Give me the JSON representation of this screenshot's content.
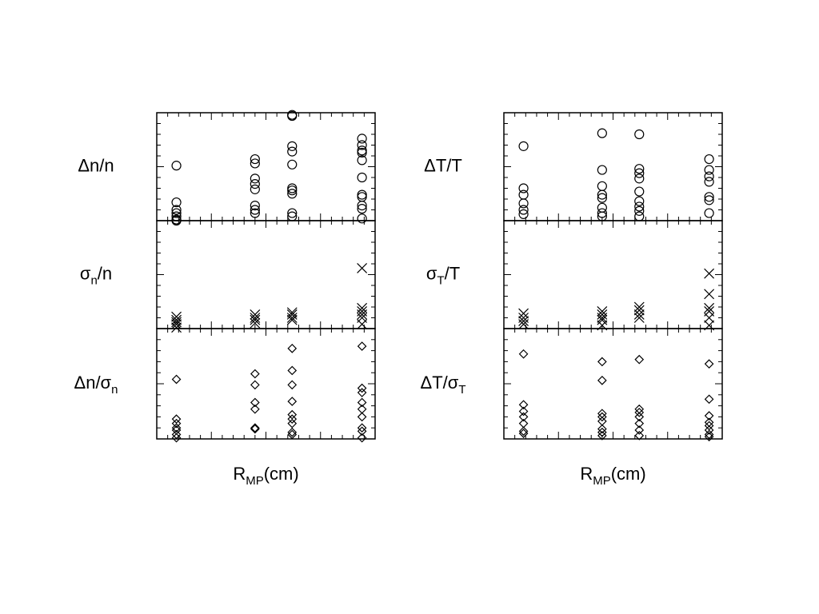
{
  "chart_data": [
    {
      "type": "scatter",
      "marker": "circle",
      "color": "#000000",
      "ylabel": [
        {
          "text": "Δn/n"
        }
      ],
      "xlim": [
        0,
        1
      ],
      "ylim": [
        0,
        1
      ],
      "x": [
        0.09,
        0.09,
        0.09,
        0.09,
        0.09,
        0.09,
        0.09,
        0.45,
        0.45,
        0.45,
        0.45,
        0.45,
        0.45,
        0.45,
        0.45,
        0.62,
        0.62,
        0.62,
        0.62,
        0.62,
        0.62,
        0.62,
        0.62,
        0.62,
        0.62,
        0.94,
        0.94,
        0.94,
        0.94,
        0.94,
        0.94,
        0.94,
        0.94,
        0.94,
        0.94,
        0.94
      ],
      "values": [
        0.51,
        0.17,
        0.1,
        0.07,
        0.04,
        0.01,
        0.0,
        0.57,
        0.53,
        0.39,
        0.34,
        0.29,
        0.14,
        0.1,
        0.07,
        0.98,
        0.97,
        0.69,
        0.64,
        0.52,
        0.3,
        0.28,
        0.25,
        0.07,
        0.04,
        0.76,
        0.7,
        0.65,
        0.63,
        0.56,
        0.4,
        0.24,
        0.22,
        0.14,
        0.11,
        0.02
      ]
    },
    {
      "type": "scatter",
      "marker": "cross",
      "color": "#000000",
      "ylabel": [
        {
          "text": "σ"
        },
        {
          "text": "n",
          "sub": true
        },
        {
          "text": "/n"
        }
      ],
      "xlim": [
        0,
        1
      ],
      "ylim": [
        0,
        1
      ],
      "x": [
        0.09,
        0.09,
        0.09,
        0.09,
        0.09,
        0.45,
        0.45,
        0.45,
        0.45,
        0.62,
        0.62,
        0.62,
        0.62,
        0.94,
        0.94,
        0.94,
        0.94,
        0.94,
        0.94
      ],
      "values": [
        0.11,
        0.08,
        0.06,
        0.04,
        0.01,
        0.13,
        0.1,
        0.08,
        0.05,
        0.15,
        0.13,
        0.1,
        0.08,
        0.56,
        0.19,
        0.16,
        0.13,
        0.1,
        0.04
      ]
    },
    {
      "type": "scatter",
      "marker": "diamond",
      "color": "#000000",
      "ylabel": [
        {
          "text": "Δn/σ"
        },
        {
          "text": "n",
          "sub": true
        }
      ],
      "xlabel": [
        {
          "text": "R"
        },
        {
          "text": "MP",
          "sub": true
        },
        {
          "text": "(cm)"
        }
      ],
      "xlim": [
        0,
        1
      ],
      "ylim": [
        0,
        1
      ],
      "x": [
        0.09,
        0.09,
        0.09,
        0.09,
        0.09,
        0.09,
        0.09,
        0.45,
        0.45,
        0.45,
        0.45,
        0.45,
        0.45,
        0.62,
        0.62,
        0.62,
        0.62,
        0.62,
        0.62,
        0.62,
        0.62,
        0.62,
        0.94,
        0.94,
        0.94,
        0.94,
        0.94,
        0.94,
        0.94,
        0.94,
        0.94
      ],
      "values": [
        0.54,
        0.18,
        0.14,
        0.1,
        0.08,
        0.04,
        0.01,
        0.59,
        0.49,
        0.33,
        0.27,
        0.1,
        0.09,
        0.82,
        0.62,
        0.49,
        0.34,
        0.22,
        0.18,
        0.14,
        0.06,
        0.04,
        0.84,
        0.46,
        0.42,
        0.33,
        0.27,
        0.2,
        0.1,
        0.07,
        0.01
      ]
    },
    {
      "type": "scatter",
      "marker": "circle",
      "color": "#000000",
      "ylabel": [
        {
          "text": "ΔT/T"
        }
      ],
      "xlim": [
        0,
        1
      ],
      "ylim": [
        0,
        1
      ],
      "x": [
        0.09,
        0.09,
        0.09,
        0.09,
        0.09,
        0.09,
        0.45,
        0.45,
        0.45,
        0.45,
        0.45,
        0.45,
        0.45,
        0.45,
        0.62,
        0.62,
        0.62,
        0.62,
        0.62,
        0.62,
        0.62,
        0.62,
        0.62,
        0.94,
        0.94,
        0.94,
        0.94,
        0.94,
        0.94,
        0.94
      ],
      "values": [
        0.69,
        0.3,
        0.24,
        0.16,
        0.1,
        0.06,
        0.81,
        0.47,
        0.32,
        0.24,
        0.21,
        0.12,
        0.07,
        0.04,
        0.8,
        0.48,
        0.44,
        0.39,
        0.27,
        0.18,
        0.13,
        0.09,
        0.04,
        0.57,
        0.47,
        0.41,
        0.36,
        0.22,
        0.19,
        0.07
      ]
    },
    {
      "type": "scatter",
      "marker": "cross",
      "color": "#000000",
      "ylabel": [
        {
          "text": "σ"
        },
        {
          "text": "T",
          "sub": true
        },
        {
          "text": "/T"
        }
      ],
      "xlim": [
        0,
        1
      ],
      "ylim": [
        0,
        1
      ],
      "x": [
        0.09,
        0.09,
        0.09,
        0.09,
        0.45,
        0.45,
        0.45,
        0.45,
        0.45,
        0.62,
        0.62,
        0.62,
        0.62,
        0.94,
        0.94,
        0.94,
        0.94,
        0.94,
        0.94
      ],
      "values": [
        0.14,
        0.1,
        0.07,
        0.04,
        0.16,
        0.13,
        0.1,
        0.08,
        0.03,
        0.2,
        0.17,
        0.13,
        0.1,
        0.51,
        0.32,
        0.19,
        0.16,
        0.1,
        0.03
      ]
    },
    {
      "type": "scatter",
      "marker": "diamond",
      "color": "#000000",
      "ylabel": [
        {
          "text": "ΔT/σ"
        },
        {
          "text": "T",
          "sub": true
        }
      ],
      "xlabel": [
        {
          "text": "R"
        },
        {
          "text": "MP",
          "sub": true
        },
        {
          "text": "(cm)"
        }
      ],
      "xlim": [
        0,
        1
      ],
      "ylim": [
        0,
        1
      ],
      "x": [
        0.09,
        0.09,
        0.09,
        0.09,
        0.09,
        0.09,
        0.09,
        0.45,
        0.45,
        0.45,
        0.45,
        0.45,
        0.45,
        0.45,
        0.45,
        0.62,
        0.62,
        0.62,
        0.62,
        0.62,
        0.62,
        0.62,
        0.94,
        0.94,
        0.94,
        0.94,
        0.94,
        0.94,
        0.94,
        0.94
      ],
      "values": [
        0.77,
        0.31,
        0.25,
        0.2,
        0.14,
        0.07,
        0.05,
        0.7,
        0.53,
        0.23,
        0.2,
        0.16,
        0.09,
        0.06,
        0.03,
        0.72,
        0.27,
        0.24,
        0.2,
        0.14,
        0.08,
        0.03,
        0.68,
        0.36,
        0.21,
        0.15,
        0.12,
        0.08,
        0.04,
        0.02
      ]
    }
  ]
}
